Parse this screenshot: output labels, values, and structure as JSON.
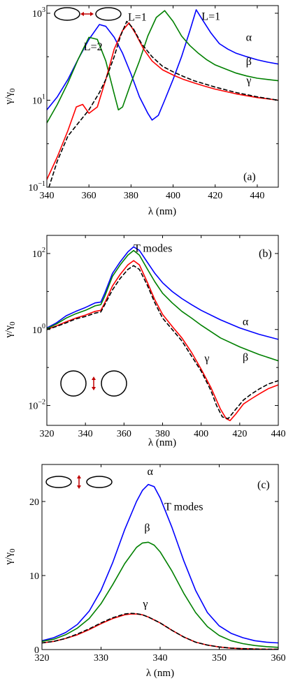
{
  "chart_data": [
    {
      "id": "a",
      "type": "line",
      "yscale": "log",
      "xlim": [
        340,
        450
      ],
      "ylim": [
        0.1,
        1500
      ],
      "xticks": [
        340,
        360,
        380,
        400,
        420,
        440
      ],
      "yticks": [
        0.1,
        10,
        1000
      ],
      "ytick_labels": [
        {
          "base": "10",
          "exp": "−1"
        },
        {
          "base": "10",
          "exp": "1"
        },
        {
          "base": "10",
          "exp": "3"
        }
      ],
      "xlabel": "λ (nm)",
      "ylabel": "γ/γ",
      "ylabel_sub": "0",
      "panel_label": "(a)",
      "series": [
        {
          "name": "α",
          "color": "#0000ff",
          "dash": false,
          "x": [
            340,
            345,
            350,
            355,
            360,
            365,
            368,
            372,
            376,
            380,
            384,
            388,
            390,
            393,
            396,
            400,
            404,
            408,
            411,
            414,
            418,
            422,
            426,
            430,
            435,
            440,
            445,
            450
          ],
          "y": [
            6,
            12,
            30,
            90,
            250,
            550,
            500,
            280,
            120,
            40,
            12,
            5,
            3.5,
            4.5,
            10,
            30,
            100,
            400,
            1200,
            700,
            350,
            200,
            150,
            120,
            100,
            85,
            75,
            68
          ]
        },
        {
          "name": "β",
          "color": "#008000",
          "dash": false,
          "x": [
            340,
            345,
            350,
            355,
            360,
            364,
            368,
            372,
            374,
            376,
            380,
            384,
            388,
            392,
            396,
            400,
            404,
            408,
            412,
            416,
            420,
            425,
            430,
            435,
            440,
            445,
            450
          ],
          "y": [
            3,
            8,
            25,
            90,
            280,
            250,
            80,
            14,
            6,
            7,
            25,
            80,
            300,
            800,
            1150,
            650,
            300,
            180,
            120,
            85,
            65,
            52,
            42,
            36,
            32,
            30,
            28
          ]
        },
        {
          "name": "γ",
          "color": "#ff0000",
          "dash": false,
          "x": [
            340,
            345,
            350,
            354,
            357,
            360,
            364,
            368,
            372,
            376,
            379,
            382,
            386,
            390,
            395,
            400,
            405,
            410,
            415,
            420,
            430,
            440,
            450
          ],
          "y": [
            0.15,
            0.5,
            2,
            7,
            8,
            5,
            7,
            30,
            150,
            400,
            600,
            350,
            150,
            80,
            50,
            38,
            30,
            25,
            21,
            18,
            14,
            11.5,
            10
          ]
        },
        {
          "name": "",
          "color": "#000000",
          "dash": true,
          "x": [
            341,
            345,
            350,
            355,
            360,
            365,
            368,
            372,
            375,
            378,
            381,
            385,
            390,
            395,
            400,
            405,
            410,
            420,
            430,
            440,
            450
          ],
          "y": [
            0.1,
            0.4,
            1.5,
            3,
            6,
            15,
            30,
            100,
            300,
            650,
            450,
            200,
            100,
            60,
            45,
            35,
            28,
            20,
            15,
            12,
            10
          ]
        }
      ],
      "annotations": [
        {
          "text": "L=2",
          "x": 362,
          "y": 140
        },
        {
          "text": "L=1",
          "x": 383,
          "y": 680
        },
        {
          "text": "L=1",
          "x": 418,
          "y": 700
        },
        {
          "text": "α",
          "x": 436,
          "y": 230
        },
        {
          "text": "β",
          "x": 436,
          "y": 65
        },
        {
          "text": "γ",
          "x": 436,
          "y": 24
        }
      ]
    },
    {
      "id": "b",
      "type": "line",
      "yscale": "log",
      "xlim": [
        320,
        440
      ],
      "ylim": [
        0.003,
        300
      ],
      "xticks": [
        320,
        340,
        360,
        380,
        400,
        420,
        440
      ],
      "yticks": [
        0.01,
        1,
        100
      ],
      "ytick_labels": [
        {
          "base": "10",
          "exp": "−2"
        },
        {
          "base": "10",
          "exp": "0"
        },
        {
          "base": "10",
          "exp": "2"
        }
      ],
      "xlabel": "λ (nm)",
      "ylabel": "γ/γ",
      "ylabel_sub": "0",
      "panel_label": "(b)",
      "series": [
        {
          "name": "α",
          "color": "#0000ff",
          "dash": false,
          "x": [
            320,
            325,
            330,
            335,
            340,
            345,
            348,
            350,
            354,
            358,
            362,
            365,
            368,
            372,
            376,
            380,
            385,
            390,
            395,
            400,
            410,
            420,
            430,
            440
          ],
          "y": [
            1.1,
            1.5,
            2.3,
            3,
            3.8,
            5,
            5.3,
            9,
            30,
            60,
            110,
            150,
            120,
            60,
            30,
            17,
            10,
            6.5,
            4.5,
            3.2,
            1.8,
            1.1,
            0.75,
            0.55
          ]
        },
        {
          "name": "β",
          "color": "#008000",
          "dash": false,
          "x": [
            320,
            325,
            330,
            335,
            340,
            345,
            348,
            350,
            354,
            358,
            362,
            365,
            368,
            372,
            376,
            380,
            385,
            390,
            395,
            400,
            410,
            420,
            430,
            440
          ],
          "y": [
            1.05,
            1.4,
            2,
            2.6,
            3.2,
            4.2,
            4.5,
            7.5,
            25,
            50,
            90,
            120,
            90,
            40,
            18,
            9,
            5,
            3,
            2,
            1.3,
            0.6,
            0.35,
            0.22,
            0.15
          ]
        },
        {
          "name": "γ",
          "color": "#ff0000",
          "dash": false,
          "x": [
            320,
            325,
            330,
            335,
            340,
            345,
            348,
            350,
            354,
            358,
            362,
            365,
            368,
            372,
            376,
            380,
            385,
            390,
            395,
            400,
            405,
            410,
            413,
            415,
            418,
            422,
            426,
            430,
            435,
            440
          ],
          "y": [
            1,
            1.25,
            1.6,
            2,
            2.4,
            3,
            3.2,
            5,
            14,
            28,
            50,
            65,
            50,
            18,
            6,
            2.5,
            1.2,
            0.6,
            0.25,
            0.09,
            0.03,
            0.008,
            0.0045,
            0.004,
            0.006,
            0.011,
            0.015,
            0.02,
            0.028,
            0.035
          ]
        },
        {
          "name": "",
          "color": "#000000",
          "dash": true,
          "x": [
            320,
            325,
            330,
            335,
            340,
            345,
            348,
            350,
            354,
            358,
            362,
            365,
            368,
            372,
            376,
            380,
            385,
            390,
            395,
            400,
            405,
            408,
            411,
            414,
            418,
            422,
            426,
            430,
            435,
            440
          ],
          "y": [
            1,
            1.2,
            1.5,
            1.9,
            2.2,
            2.7,
            2.9,
            4.5,
            11,
            22,
            38,
            48,
            38,
            15,
            5,
            2,
            1,
            0.5,
            0.2,
            0.08,
            0.025,
            0.01,
            0.005,
            0.0045,
            0.008,
            0.014,
            0.02,
            0.027,
            0.037,
            0.045
          ]
        }
      ],
      "annotations": [
        {
          "text": "T modes",
          "x": 375,
          "y": 110
        },
        {
          "text": "α",
          "x": 423,
          "y": 1.3
        },
        {
          "text": "β",
          "x": 423,
          "y": 0.15
        },
        {
          "text": "γ",
          "x": 403,
          "y": 0.14
        }
      ]
    },
    {
      "id": "c",
      "type": "line",
      "yscale": "linear",
      "xlim": [
        320,
        360
      ],
      "ylim": [
        0,
        25
      ],
      "xticks": [
        320,
        330,
        340,
        350,
        360
      ],
      "yticks": [
        0,
        10,
        20
      ],
      "ytick_labels": [
        {
          "base": "0",
          "exp": ""
        },
        {
          "base": "10",
          "exp": ""
        },
        {
          "base": "20",
          "exp": ""
        }
      ],
      "xlabel": "λ (nm)",
      "ylabel": "γ/γ",
      "ylabel_sub": "0",
      "panel_label": "(c)",
      "series": [
        {
          "name": "α",
          "color": "#0000ff",
          "dash": false,
          "x": [
            320,
            322,
            324,
            326,
            328,
            330,
            332,
            334,
            336,
            337,
            338,
            339,
            340,
            342,
            344,
            346,
            348,
            350,
            352,
            354,
            356,
            358,
            360
          ],
          "y": [
            1.2,
            1.6,
            2.3,
            3.4,
            5.2,
            8,
            11.8,
            16.2,
            20,
            21.5,
            22.3,
            22,
            20.5,
            16.5,
            12,
            8,
            5,
            3.2,
            2.2,
            1.6,
            1.2,
            1,
            0.9
          ]
        },
        {
          "name": "β",
          "color": "#008000",
          "dash": false,
          "x": [
            320,
            322,
            324,
            326,
            328,
            330,
            332,
            334,
            336,
            337,
            338,
            339,
            340,
            342,
            344,
            346,
            348,
            350,
            352,
            354,
            356,
            358,
            360
          ],
          "y": [
            1.1,
            1.4,
            2,
            2.9,
            4.2,
            6.2,
            8.8,
            11.6,
            13.8,
            14.4,
            14.5,
            14.1,
            13.2,
            10.6,
            7.6,
            5,
            3.1,
            1.9,
            1.2,
            0.8,
            0.55,
            0.4,
            0.3
          ]
        },
        {
          "name": "γ",
          "color": "#ff0000",
          "dash": false,
          "x": [
            320,
            322,
            324,
            326,
            328,
            330,
            332,
            334,
            335,
            336,
            337,
            338,
            340,
            342,
            344,
            346,
            348,
            350,
            352,
            354,
            356,
            358,
            360
          ],
          "y": [
            0.9,
            1.1,
            1.5,
            2,
            2.7,
            3.5,
            4.2,
            4.7,
            4.8,
            4.8,
            4.7,
            4.4,
            3.6,
            2.6,
            1.7,
            1,
            0.6,
            0.35,
            0.2,
            0.12,
            0.08,
            0.05,
            0.04
          ]
        },
        {
          "name": "",
          "color": "#000000",
          "dash": true,
          "x": [
            320,
            322,
            324,
            326,
            328,
            330,
            332,
            334,
            335,
            336,
            337,
            338,
            340,
            342,
            344,
            346,
            348,
            350,
            352,
            354,
            356,
            358,
            360
          ],
          "y": [
            0.9,
            1.1,
            1.5,
            2.1,
            2.8,
            3.6,
            4.3,
            4.8,
            4.9,
            4.85,
            4.7,
            4.4,
            3.6,
            2.6,
            1.7,
            1,
            0.6,
            0.35,
            0.2,
            0.12,
            0.08,
            0.05,
            0.04
          ]
        }
      ],
      "annotations": [
        {
          "text": "α",
          "x": 338.3,
          "y": 23.6
        },
        {
          "text": "T modes",
          "x": 344,
          "y": 18.8
        },
        {
          "text": "β",
          "x": 337.8,
          "y": 16
        },
        {
          "text": "γ",
          "x": 337.5,
          "y": 5.7
        }
      ]
    }
  ]
}
